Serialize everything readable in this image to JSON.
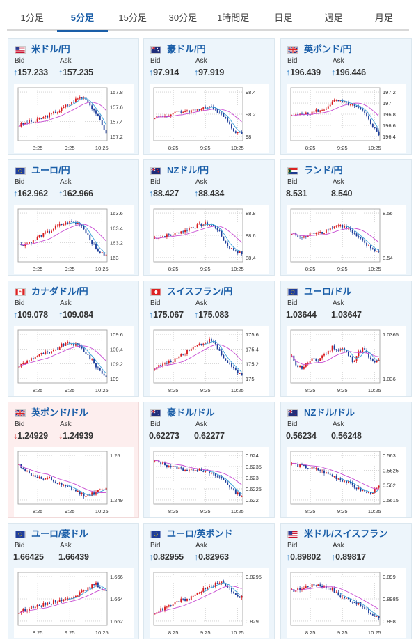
{
  "tabs": [
    "1分足",
    "5分足",
    "15分足",
    "30分足",
    "1時間足",
    "日足",
    "週足",
    "月足"
  ],
  "active_tab": 1,
  "labels": {
    "bid": "Bid",
    "ask": "Ask"
  },
  "x_ticks": [
    "8:25",
    "9:25",
    "10:25"
  ],
  "colors": {
    "up_candle": "#d8191c",
    "down_candle": "#1c3d9a",
    "ma_fast": "#3ba0d8",
    "ma_slow": "#c84bd2",
    "title": "#1a5ea8",
    "card_bg": "#edf5fb",
    "card_bg_down": "#fdeeee"
  },
  "cards": [
    {
      "title": "米ドル/円",
      "flag": "us-jp-flag-icon",
      "dir": "up",
      "bid": "157.233",
      "ask": "157.235",
      "bid_arrow": "↑",
      "ask_arrow": "↑",
      "y_ticks": [
        "157.8",
        "157.6",
        "157.4",
        "157.2"
      ]
    },
    {
      "title": "豪ドル/円",
      "flag": "au-jp-flag-icon",
      "dir": "up",
      "bid": "97.914",
      "ask": "97.919",
      "bid_arrow": "↑",
      "ask_arrow": "↑",
      "y_ticks": [
        "98.4",
        "98.2",
        "98"
      ]
    },
    {
      "title": "英ポンド/円",
      "flag": "gb-jp-flag-icon",
      "dir": "up",
      "bid": "196.439",
      "ask": "196.446",
      "bid_arrow": "↑",
      "ask_arrow": "↑",
      "y_ticks": [
        "197.2",
        "197",
        "196.8",
        "196.6",
        "196.4"
      ]
    },
    {
      "title": "ユーロ/円",
      "flag": "eu-jp-flag-icon",
      "dir": "up",
      "bid": "162.962",
      "ask": "162.966",
      "bid_arrow": "↑",
      "ask_arrow": "↑",
      "y_ticks": [
        "163.6",
        "163.4",
        "163.2",
        "163"
      ]
    },
    {
      "title": "NZドル/円",
      "flag": "nz-jp-flag-icon",
      "dir": "up",
      "bid": "88.427",
      "ask": "88.434",
      "bid_arrow": "↑",
      "ask_arrow": "↑",
      "y_ticks": [
        "88.8",
        "88.6",
        "88.4"
      ]
    },
    {
      "title": "ランド/円",
      "flag": "za-jp-flag-icon",
      "dir": "none",
      "bid": "8.531",
      "ask": "8.540",
      "bid_arrow": "",
      "ask_arrow": "",
      "y_ticks": [
        "8.56",
        "8.54"
      ]
    },
    {
      "title": "カナダドル/円",
      "flag": "ca-jp-flag-icon",
      "dir": "up",
      "bid": "109.078",
      "ask": "109.084",
      "bid_arrow": "↑",
      "ask_arrow": "↑",
      "y_ticks": [
        "109.6",
        "109.4",
        "109.2",
        "109"
      ]
    },
    {
      "title": "スイスフラン/円",
      "flag": "ch-jp-flag-icon",
      "dir": "up",
      "bid": "175.067",
      "ask": "175.083",
      "bid_arrow": "↑",
      "ask_arrow": "↑",
      "y_ticks": [
        "175.6",
        "175.4",
        "175.2",
        "175"
      ]
    },
    {
      "title": "ユーロ/ドル",
      "flag": "eu-us-flag-icon",
      "dir": "none",
      "bid": "1.03644",
      "ask": "1.03647",
      "bid_arrow": "",
      "ask_arrow": "",
      "y_ticks": [
        "1.0365",
        "1.036"
      ]
    },
    {
      "title": "英ポンド/ドル",
      "flag": "gb-us-flag-icon",
      "dir": "down",
      "bid": "1.24929",
      "ask": "1.24939",
      "bid_arrow": "↓",
      "ask_arrow": "↓",
      "y_ticks": [
        "1.25",
        "1.249"
      ]
    },
    {
      "title": "豪ドル/ドル",
      "flag": "au-us-flag-icon",
      "dir": "none",
      "bid": "0.62273",
      "ask": "0.62277",
      "bid_arrow": "",
      "ask_arrow": "",
      "y_ticks": [
        "0.624",
        "0.6235",
        "0.623",
        "0.6225",
        "0.622"
      ]
    },
    {
      "title": "NZドル/ドル",
      "flag": "nz-us-flag-icon",
      "dir": "none",
      "bid": "0.56234",
      "ask": "0.56248",
      "bid_arrow": "",
      "ask_arrow": "",
      "y_ticks": [
        "0.563",
        "0.5625",
        "0.562",
        "0.5615"
      ]
    },
    {
      "title": "ユーロ/豪ドル",
      "flag": "eu-au-flag-icon",
      "dir": "none",
      "bid": "1.66425",
      "ask": "1.66439",
      "bid_arrow": "",
      "ask_arrow": "",
      "y_ticks": [
        "1.666",
        "1.664",
        "1.662"
      ]
    },
    {
      "title": "ユーロ/英ポンド",
      "flag": "eu-gb-flag-icon",
      "dir": "up",
      "bid": "0.82955",
      "ask": "0.82963",
      "bid_arrow": "↑",
      "ask_arrow": "↑",
      "y_ticks": [
        "0.8295",
        "0.829"
      ]
    },
    {
      "title": "米ドル/スイスフラン",
      "flag": "us-ch-flag-icon",
      "dir": "up",
      "bid": "0.89802",
      "ask": "0.89817",
      "bid_arrow": "↑",
      "ask_arrow": "↑",
      "y_ticks": [
        "0.899",
        "0.8985",
        "0.898"
      ]
    }
  ]
}
